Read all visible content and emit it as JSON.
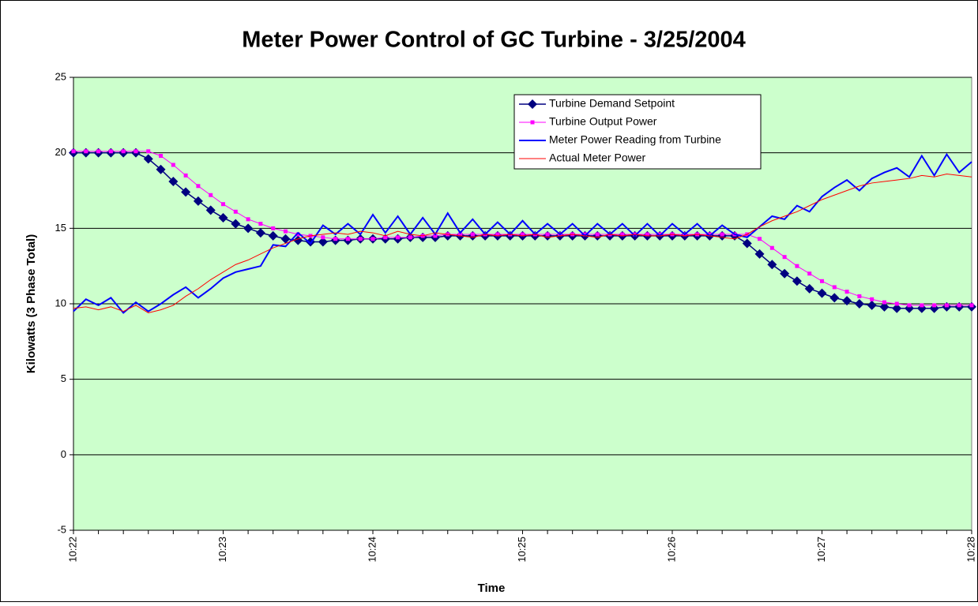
{
  "chart_data": {
    "type": "line",
    "title": "Meter Power Control of GC Turbine - 3/25/2004",
    "x_label": "Time",
    "y_label": "Kilowatts (3 Phase Total)",
    "categories": [
      "10:22",
      null,
      null,
      null,
      null,
      null,
      null,
      null,
      null,
      null,
      null,
      null,
      "10:23",
      null,
      null,
      null,
      null,
      null,
      null,
      null,
      null,
      null,
      null,
      null,
      "10:24",
      null,
      null,
      null,
      null,
      null,
      null,
      null,
      null,
      null,
      null,
      null,
      "10:25",
      null,
      null,
      null,
      null,
      null,
      null,
      null,
      null,
      null,
      null,
      null,
      "10:26",
      null,
      null,
      null,
      null,
      null,
      null,
      null,
      null,
      null,
      null,
      null,
      "10:27",
      null,
      null,
      null,
      null,
      null,
      null,
      null,
      null,
      null,
      null,
      null,
      "10:28"
    ],
    "series": [
      {
        "name": "Turbine Demand Setpoint",
        "color": "#000080",
        "marker": "diamond",
        "line_width": 1.5,
        "values": [
          20,
          20,
          20,
          20,
          20,
          20,
          19.6,
          18.9,
          18.1,
          17.4,
          16.8,
          16.2,
          15.7,
          15.3,
          15.0,
          14.7,
          14.5,
          14.3,
          14.2,
          14.1,
          14.1,
          14.2,
          14.2,
          14.3,
          14.3,
          14.3,
          14.3,
          14.4,
          14.4,
          14.4,
          14.5,
          14.5,
          14.5,
          14.5,
          14.5,
          14.5,
          14.5,
          14.5,
          14.5,
          14.5,
          14.5,
          14.5,
          14.5,
          14.5,
          14.5,
          14.5,
          14.5,
          14.5,
          14.5,
          14.5,
          14.5,
          14.5,
          14.5,
          14.5,
          14.0,
          13.3,
          12.6,
          12.0,
          11.5,
          11.0,
          10.7,
          10.4,
          10.2,
          10.0,
          9.9,
          9.8,
          9.7,
          9.7,
          9.7,
          9.7,
          9.8,
          9.8,
          9.8
        ]
      },
      {
        "name": "Turbine Output Power",
        "color": "#ff00ff",
        "marker": "square",
        "line_width": 1,
        "values": [
          20.1,
          20.1,
          20.1,
          20.1,
          20.1,
          20.1,
          20.1,
          19.8,
          19.2,
          18.5,
          17.8,
          17.2,
          16.6,
          16.1,
          15.6,
          15.3,
          15.0,
          14.8,
          14.6,
          14.5,
          14.4,
          14.3,
          14.3,
          14.3,
          14.3,
          14.4,
          14.4,
          14.4,
          14.5,
          14.5,
          14.6,
          14.6,
          14.6,
          14.6,
          14.6,
          14.6,
          14.6,
          14.6,
          14.6,
          14.6,
          14.6,
          14.6,
          14.6,
          14.6,
          14.6,
          14.6,
          14.6,
          14.6,
          14.6,
          14.6,
          14.6,
          14.6,
          14.6,
          14.6,
          14.6,
          14.3,
          13.7,
          13.1,
          12.5,
          12.0,
          11.5,
          11.1,
          10.8,
          10.5,
          10.3,
          10.1,
          10.0,
          9.9,
          9.9,
          9.9,
          9.9,
          9.9,
          9.9
        ]
      },
      {
        "name": "Meter Power Reading from Turbine",
        "color": "#0000ff",
        "marker": "none",
        "line_width": 2,
        "values": [
          9.5,
          10.3,
          9.9,
          10.4,
          9.4,
          10.1,
          9.5,
          10.0,
          10.6,
          11.1,
          10.4,
          11.0,
          11.7,
          12.1,
          12.3,
          12.5,
          13.9,
          13.8,
          14.7,
          14.0,
          15.2,
          14.6,
          15.3,
          14.6,
          15.9,
          14.7,
          15.8,
          14.6,
          15.7,
          14.6,
          16.0,
          14.7,
          15.6,
          14.6,
          15.4,
          14.6,
          15.5,
          14.6,
          15.3,
          14.6,
          15.3,
          14.5,
          15.3,
          14.6,
          15.3,
          14.5,
          15.3,
          14.5,
          15.3,
          14.6,
          15.3,
          14.5,
          15.2,
          14.6,
          14.4,
          15.1,
          15.8,
          15.6,
          16.5,
          16.1,
          17.1,
          17.7,
          18.2,
          17.5,
          18.3,
          18.7,
          19.0,
          18.4,
          19.8,
          18.5,
          19.9,
          18.7,
          19.4
        ]
      },
      {
        "name": "Actual Meter Power",
        "color": "#ff0000",
        "marker": "none",
        "line_width": 1,
        "values": [
          9.7,
          9.8,
          9.6,
          9.8,
          9.5,
          9.9,
          9.4,
          9.6,
          9.9,
          10.5,
          11.0,
          11.6,
          12.1,
          12.6,
          12.9,
          13.3,
          13.7,
          14.0,
          14.3,
          14.5,
          14.6,
          14.7,
          14.6,
          14.8,
          14.7,
          14.5,
          14.8,
          14.6,
          14.5,
          14.7,
          14.6,
          14.5,
          14.4,
          14.6,
          14.5,
          14.6,
          14.5,
          14.6,
          14.4,
          14.5,
          14.6,
          14.5,
          14.4,
          14.6,
          14.5,
          14.6,
          14.5,
          14.5,
          14.6,
          14.5,
          14.6,
          14.5,
          14.4,
          14.3,
          14.6,
          15.1,
          15.5,
          15.8,
          16.1,
          16.5,
          16.9,
          17.2,
          17.5,
          17.8,
          18.0,
          18.1,
          18.2,
          18.3,
          18.5,
          18.4,
          18.6,
          18.5,
          18.4
        ]
      }
    ],
    "ylim": [
      -5,
      25
    ],
    "yticks": [
      -5,
      0,
      5,
      10,
      15,
      20,
      25
    ],
    "grid": true,
    "legend": "upper right",
    "plot_background": "#ccffcc"
  }
}
